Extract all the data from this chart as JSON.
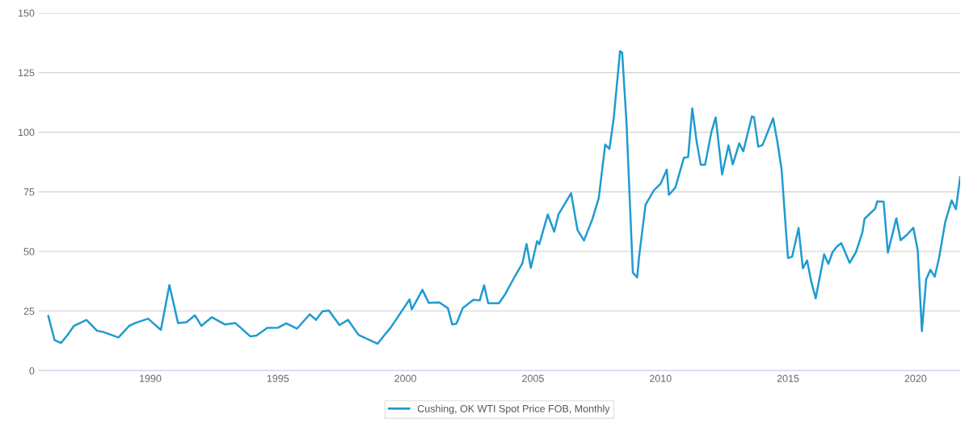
{
  "chart_data": {
    "type": "line",
    "x": [
      "1986-01",
      "1986-04",
      "1986-07",
      "1986-10",
      "1987-01",
      "1987-07",
      "1987-12",
      "1988-03",
      "1988-10",
      "1989-03",
      "1989-06",
      "1989-12",
      "1990-06",
      "1990-10",
      "1991-02",
      "1991-06",
      "1991-10",
      "1992-01",
      "1992-06",
      "1992-12",
      "1993-05",
      "1993-12",
      "1994-03",
      "1994-08",
      "1995-01",
      "1995-05",
      "1995-10",
      "1996-04",
      "1996-07",
      "1996-10",
      "1997-01",
      "1997-06",
      "1997-10",
      "1998-03",
      "1998-06",
      "1998-12",
      "1999-03",
      "1999-06",
      "1999-11",
      "2000-03",
      "2000-04",
      "2000-09",
      "2000-12",
      "2001-05",
      "2001-09",
      "2001-11",
      "2002-01",
      "2002-04",
      "2002-09",
      "2002-12",
      "2003-02",
      "2003-04",
      "2003-09",
      "2003-12",
      "2004-05",
      "2004-08",
      "2004-10",
      "2004-12",
      "2005-03",
      "2005-04",
      "2005-08",
      "2005-11",
      "2006-01",
      "2006-07",
      "2006-10",
      "2007-01",
      "2007-05",
      "2007-08",
      "2007-11",
      "2008-01",
      "2008-03",
      "2008-06",
      "2008-07",
      "2008-09",
      "2008-12",
      "2009-02",
      "2009-03",
      "2009-06",
      "2009-10",
      "2010-01",
      "2010-04",
      "2010-05",
      "2010-08",
      "2010-12",
      "2011-02",
      "2011-04",
      "2011-06",
      "2011-08",
      "2011-10",
      "2012-01",
      "2012-03",
      "2012-06",
      "2012-09",
      "2012-11",
      "2013-02",
      "2013-04",
      "2013-08",
      "2013-09",
      "2013-11",
      "2014-01",
      "2014-06",
      "2014-08",
      "2014-10",
      "2014-12",
      "2015-01",
      "2015-03",
      "2015-06",
      "2015-08",
      "2015-10",
      "2015-12",
      "2016-02",
      "2016-06",
      "2016-08",
      "2016-10",
      "2016-12",
      "2017-02",
      "2017-06",
      "2017-09",
      "2017-12",
      "2018-01",
      "2018-06",
      "2018-07",
      "2018-10",
      "2018-12",
      "2019-04",
      "2019-06",
      "2019-09",
      "2019-12",
      "2020-02",
      "2020-04",
      "2020-06",
      "2020-08",
      "2020-10",
      "2020-12",
      "2021-03",
      "2021-06",
      "2021-08",
      "2021-10"
    ],
    "series": [
      {
        "name": "Cushing, OK WTI Spot Price FOB, Monthly",
        "color": "#1f9bd1",
        "values": [
          22.9,
          12.8,
          11.6,
          14.9,
          18.7,
          21.3,
          16.7,
          16.2,
          13.9,
          18.7,
          20.0,
          21.8,
          17.1,
          35.9,
          20.0,
          20.3,
          23.2,
          18.8,
          22.4,
          19.4,
          20.0,
          14.4,
          14.7,
          17.9,
          18.0,
          19.8,
          17.6,
          23.6,
          21.3,
          24.9,
          25.2,
          19.1,
          21.3,
          15.0,
          13.7,
          11.3,
          14.7,
          17.9,
          24.6,
          29.9,
          25.7,
          33.9,
          28.4,
          28.6,
          26.2,
          19.4,
          19.7,
          26.2,
          29.7,
          29.5,
          35.8,
          28.3,
          28.3,
          32.1,
          40.3,
          44.9,
          53.1,
          43.1,
          54.3,
          53.0,
          65.5,
          58.3,
          65.5,
          74.4,
          58.9,
          54.6,
          63.5,
          72.4,
          94.8,
          93.0,
          105.5,
          134.0,
          133.4,
          104.1,
          41.1,
          39.1,
          48.0,
          69.6,
          75.7,
          78.3,
          84.3,
          73.7,
          76.7,
          89.2,
          89.6,
          110.0,
          96.3,
          86.3,
          86.3,
          100.2,
          106.2,
          82.3,
          94.5,
          86.5,
          95.3,
          92.0,
          106.6,
          106.3,
          93.9,
          94.6,
          105.8,
          96.1,
          84.4,
          59.3,
          47.2,
          47.8,
          59.8,
          42.9,
          46.2,
          37.2,
          30.3,
          48.8,
          44.8,
          49.8,
          52.0,
          53.5,
          45.2,
          49.8,
          58.0,
          63.7,
          67.9,
          71.0,
          70.8,
          49.5,
          63.9,
          54.7,
          57.0,
          59.9,
          50.5,
          16.6,
          38.3,
          42.3,
          39.4,
          47.0,
          62.3,
          71.4,
          67.7,
          81.2
        ]
      }
    ],
    "xlim": [
      "1985-08-15",
      "2021-10"
    ],
    "xticks": [
      {
        "value": "1990",
        "label": "1990"
      },
      {
        "value": "1995",
        "label": "1995"
      },
      {
        "value": "2000",
        "label": "2000"
      },
      {
        "value": "2005",
        "label": "2005"
      },
      {
        "value": "2010",
        "label": "2010"
      },
      {
        "value": "2015",
        "label": "2015"
      },
      {
        "value": "2020",
        "label": "2020"
      }
    ],
    "ylim": [
      0,
      150
    ],
    "yticks": [
      0,
      25,
      50,
      75,
      100,
      125,
      150
    ],
    "grid": "y",
    "legend": "bottom",
    "marker": "none",
    "line_style": "solid"
  }
}
